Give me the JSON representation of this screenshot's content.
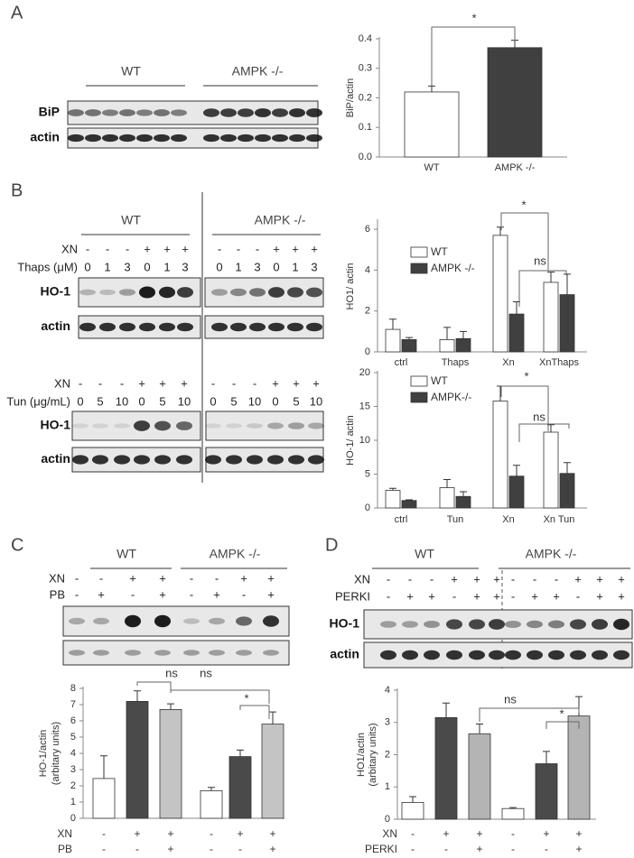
{
  "panel_labels": [
    "A",
    "B",
    "C",
    "D"
  ],
  "blots": [
    {
      "groups": [
        "WT",
        "AMPK -/-"
      ],
      "rows": [],
      "bands": [
        "BiP",
        "actin"
      ]
    },
    {
      "groups": [
        "WT",
        "AMPK -/-"
      ],
      "rows": [
        {
          "name": "XN",
          "signs": [
            "-",
            "-",
            "-",
            "+",
            "+",
            "+",
            "-",
            "-",
            "-",
            "+",
            "+",
            "+"
          ]
        },
        {
          "name": "Thaps (μM)",
          "signs": [
            "0",
            "1",
            "3",
            "0",
            "1",
            "3",
            "0",
            "1",
            "3",
            "0",
            "1",
            "3"
          ]
        }
      ],
      "bands": [
        "HO-1",
        "actin"
      ]
    },
    {
      "groups": [],
      "rows": [
        {
          "name": "XN",
          "signs": [
            "-",
            "-",
            "-",
            "+",
            "+",
            "+",
            "-",
            "-",
            "-",
            "+",
            "+",
            "+"
          ]
        },
        {
          "name": "Tun (μg/mL)",
          "signs": [
            "0",
            "5",
            "10",
            "0",
            "5",
            "10",
            "0",
            "5",
            "10",
            "0",
            "5",
            "10"
          ]
        }
      ],
      "bands": [
        "HO-1",
        "actin"
      ]
    },
    {
      "groups": [
        "WT",
        "AMPK -/-"
      ],
      "rows": [
        {
          "name": "XN",
          "signs": [
            "-",
            "-",
            "+",
            "+",
            "-",
            "-",
            "+",
            "+"
          ]
        },
        {
          "name": "PB",
          "signs": [
            "-",
            "+",
            "-",
            "+",
            "-",
            "+",
            "-",
            "+"
          ]
        }
      ],
      "bands": []
    },
    {
      "groups": [
        "WT",
        "AMPK -/-"
      ],
      "rows": [
        {
          "name": "XN",
          "signs": [
            "-",
            "-",
            "-",
            "+",
            "+",
            "+",
            "-",
            "-",
            "-",
            "+",
            "+",
            "+"
          ]
        },
        {
          "name": "PERKI",
          "signs": [
            "-",
            "+",
            "+",
            "-",
            "+",
            "+",
            "-",
            "+",
            "+",
            "-",
            "+",
            "+"
          ]
        }
      ],
      "bands": [
        "HO-1",
        "actin"
      ]
    }
  ],
  "chart_data": [
    {
      "type": "bar",
      "ylabel": [
        "BiP/actin"
      ],
      "categories": [
        "WT",
        "AMPK -/-"
      ],
      "values": [
        0.22,
        0.37
      ],
      "errors": [
        0.02,
        0.025
      ],
      "colors": [
        "#ffffff",
        "#404040"
      ],
      "ylim": [
        0,
        0.4
      ],
      "yticks": [
        {
          "value": 0,
          "label": "0.0"
        },
        0.1,
        0.2,
        0.3,
        0.4
      ],
      "annotations": [
        "*"
      ]
    },
    {
      "type": "grouped_bar",
      "ylabel": [
        "HO1/ actin"
      ],
      "categories": [
        "ctrl",
        "Thaps",
        "Xn",
        "XnThaps"
      ],
      "series": [
        {
          "name": "WT",
          "color": "#ffffff",
          "values": [
            1.1,
            0.6,
            5.7,
            3.4
          ],
          "errors": [
            0.5,
            0.6,
            0.4,
            0.5
          ]
        },
        {
          "name": "AMPK -/-",
          "color": "#404040",
          "values": [
            0.6,
            0.65,
            1.85,
            2.8
          ],
          "errors": [
            0.1,
            0.35,
            0.6,
            1.0
          ]
        }
      ],
      "ylim": [
        0,
        6.4
      ],
      "yticks": [
        0,
        2,
        4,
        6
      ],
      "annotations": [
        "*",
        "ns"
      ]
    },
    {
      "type": "grouped_bar",
      "ylabel": [
        "HO-1/ actin"
      ],
      "categories": [
        "ctrl",
        "Tun",
        "Xn",
        "Xn Tun"
      ],
      "series": [
        {
          "name": "WT",
          "color": "#ffffff",
          "values": [
            2.6,
            3.0,
            15.8,
            11.2
          ],
          "errors": [
            0.3,
            1.2,
            2.2,
            1.1
          ]
        },
        {
          "name": "AMPK-/-",
          "color": "#404040",
          "values": [
            1.1,
            1.7,
            4.7,
            5.1
          ],
          "errors": [
            0.1,
            0.7,
            1.6,
            1.6
          ]
        }
      ],
      "ylim": [
        0,
        20
      ],
      "yticks": [
        0,
        5,
        10,
        15,
        20
      ],
      "annotations": [
        "*",
        "ns"
      ]
    },
    {
      "type": "bar",
      "ylabel": [
        "HO-1/actin",
        "(arbitary units)"
      ],
      "values": [
        2.45,
        7.2,
        6.7,
        1.7,
        3.8,
        5.8
      ],
      "errors": [
        1.4,
        0.65,
        0.35,
        0.2,
        0.4,
        0.75
      ],
      "colors": [
        "#ffffff",
        "#4a4a4a",
        "#c4c4c4",
        "#ffffff",
        "#4a4a4a",
        "#c4c4c4"
      ],
      "rows": [
        {
          "name": "XN",
          "signs": [
            "-",
            "+",
            "+",
            "-",
            "+",
            "+"
          ]
        },
        {
          "name": "PB",
          "signs": [
            "-",
            "-",
            "+",
            "-",
            "-",
            "+"
          ]
        }
      ],
      "ylim": [
        0,
        8
      ],
      "yticks": [
        0,
        1,
        2,
        3,
        4,
        5,
        6,
        7,
        8
      ],
      "annotations": [
        "ns",
        "ns",
        "*"
      ]
    },
    {
      "type": "bar",
      "ylabel": [
        "HO1/actin",
        "(arbitary units)"
      ],
      "values": [
        0.52,
        3.15,
        2.65,
        0.33,
        1.72,
        3.2
      ],
      "errors": [
        0.18,
        0.45,
        0.3,
        0.03,
        0.38,
        0.6
      ],
      "colors": [
        "#ffffff",
        "#4a4a4a",
        "#b4b4b4",
        "#ffffff",
        "#4a4a4a",
        "#b4b4b4"
      ],
      "rows": [
        {
          "name": "XN",
          "signs": [
            "-",
            "+",
            "+",
            "-",
            "+",
            "+"
          ]
        },
        {
          "name": "PERKI",
          "signs": [
            "-",
            "-",
            "+",
            "-",
            "-",
            "+"
          ]
        }
      ],
      "ylim": [
        0,
        4
      ],
      "yticks": [
        0,
        1,
        2,
        3,
        4
      ],
      "annotations": [
        "ns",
        "*"
      ]
    }
  ]
}
